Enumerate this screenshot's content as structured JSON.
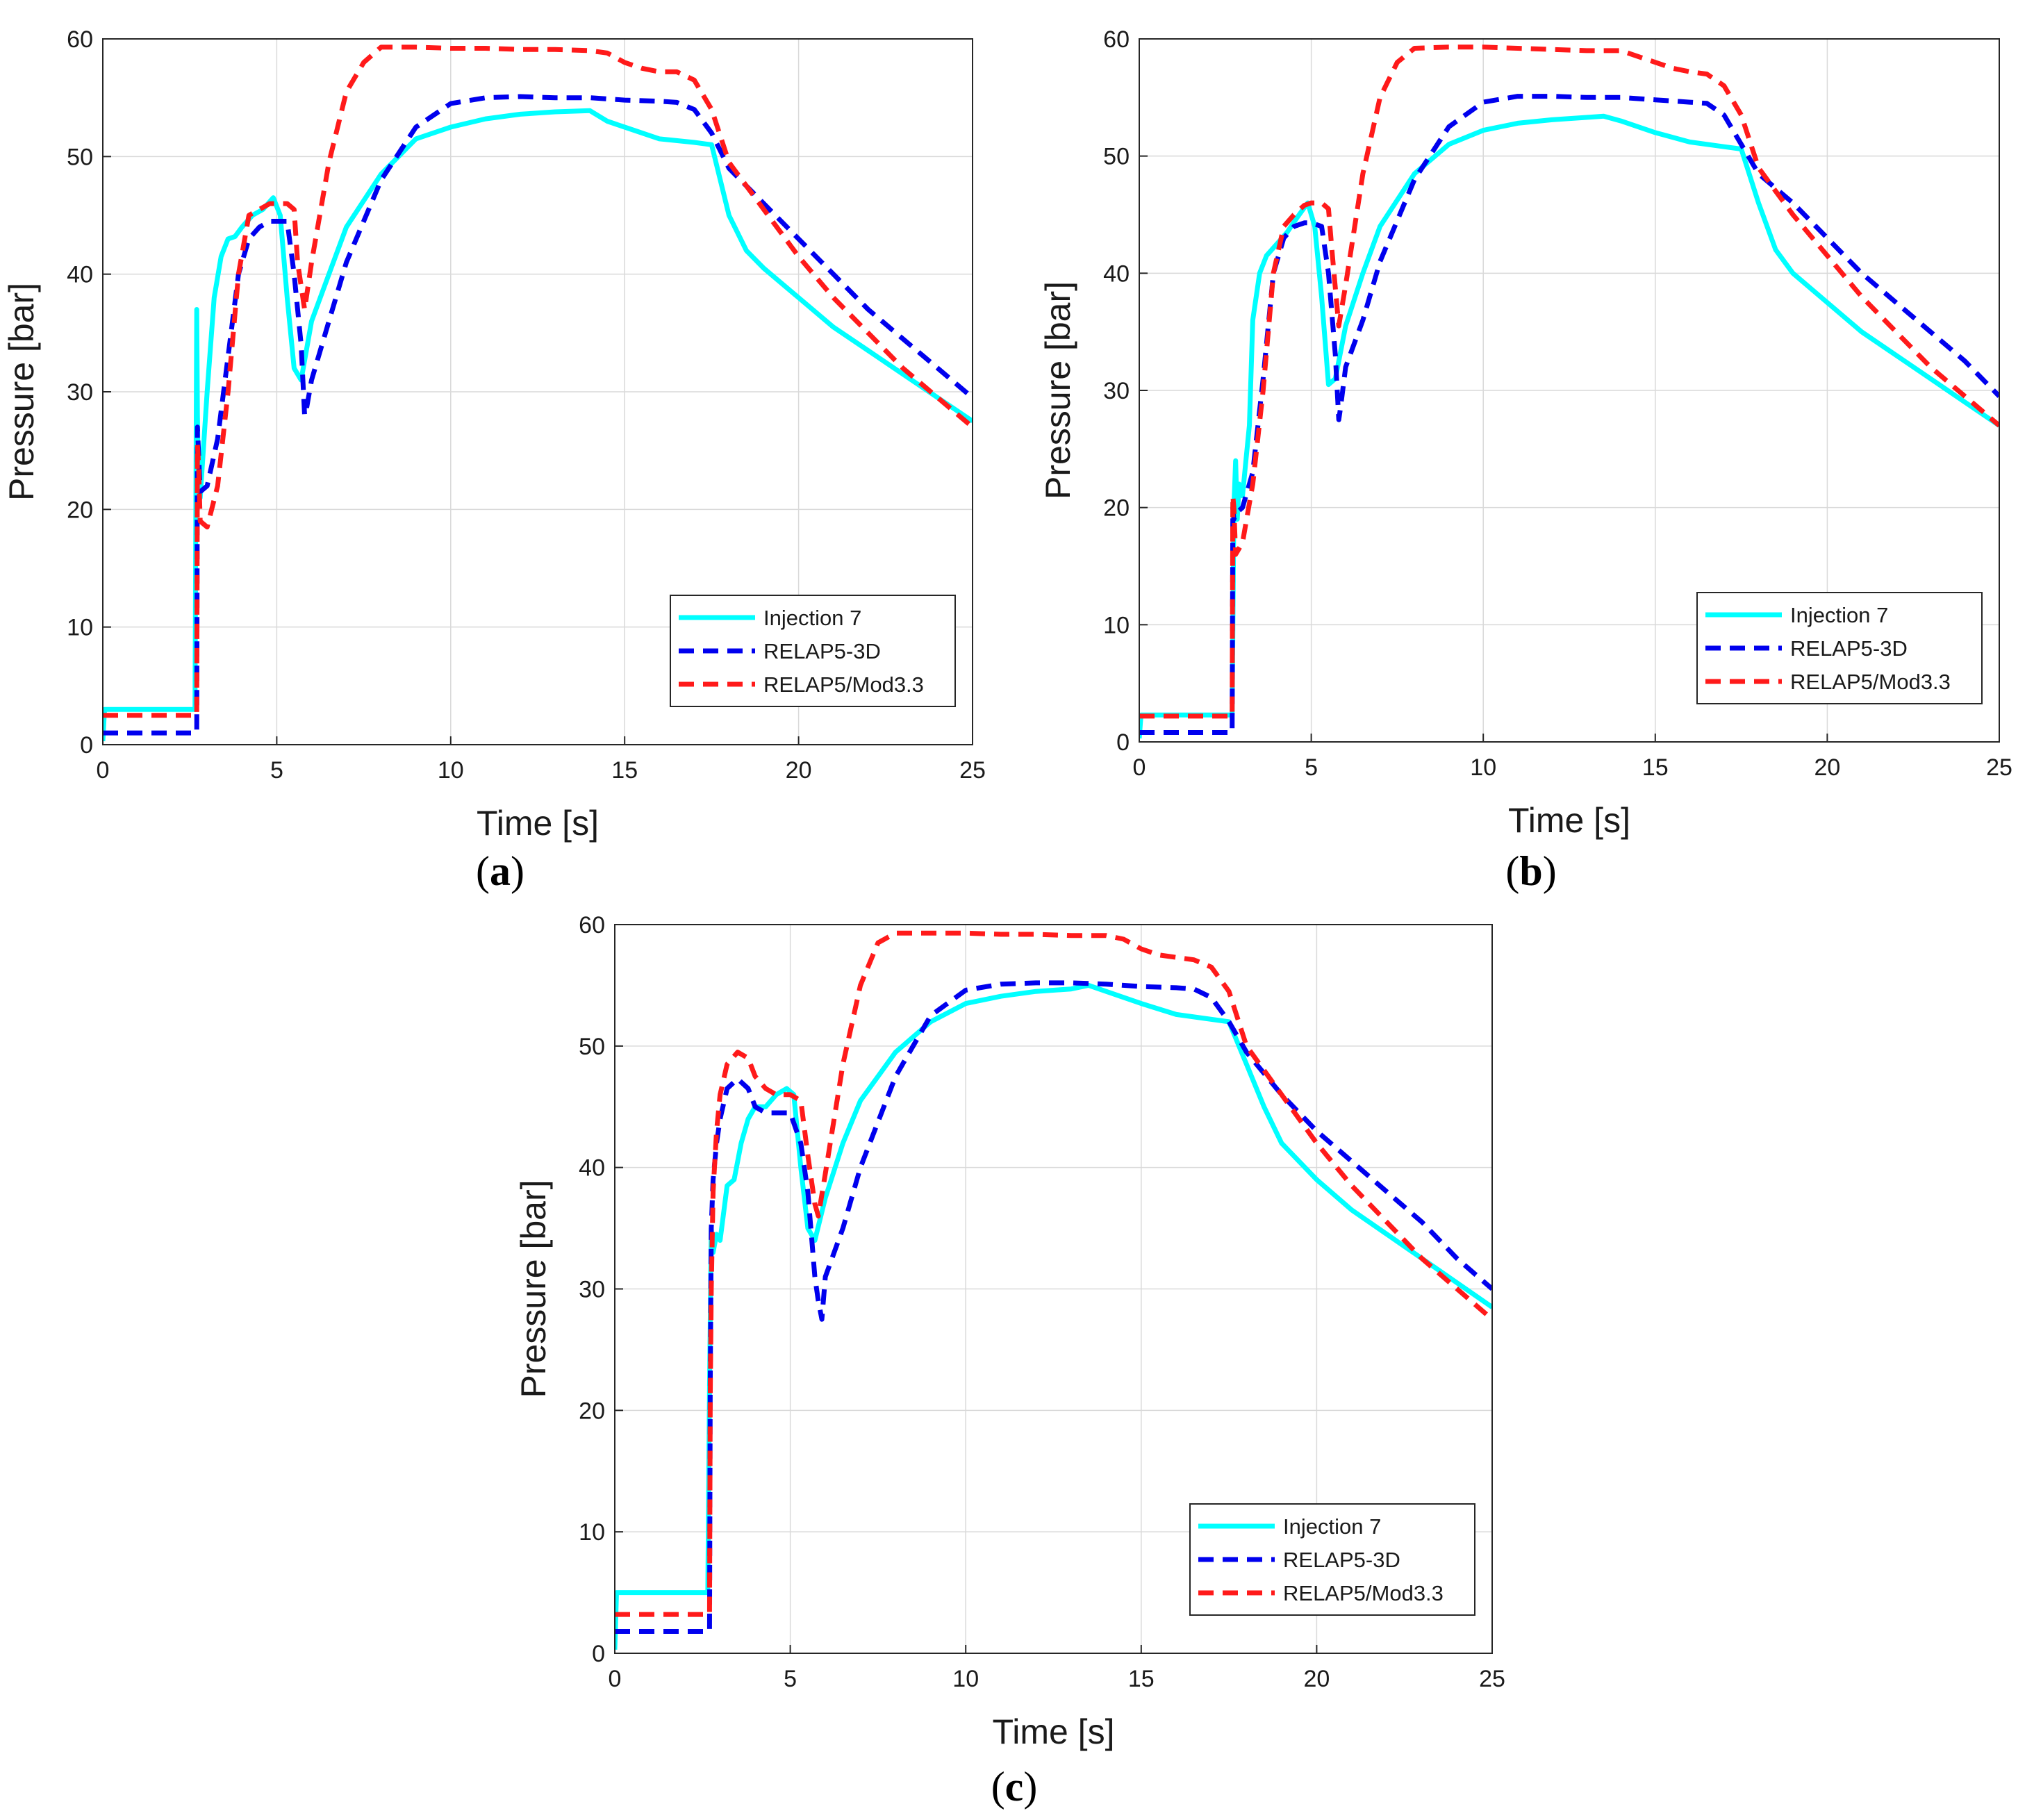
{
  "colors": {
    "injection": "#00FFFF",
    "relap3d": "#0000EE",
    "mod33": "#FF1A1A",
    "grid": "#d9d9d9",
    "axis": "#262626"
  },
  "chart_data": [
    {
      "panel": "a",
      "caption": "a",
      "type": "line",
      "xlabel": "Time [s]",
      "ylabel": "Pressure [bar]",
      "xlim": [
        0,
        25
      ],
      "ylim": [
        0,
        60
      ],
      "xticks": [
        0,
        5,
        10,
        15,
        20,
        25
      ],
      "yticks": [
        0,
        10,
        20,
        30,
        40,
        50,
        60
      ],
      "xtick_labels": [
        "0",
        "5",
        "10",
        "15",
        "20",
        "25"
      ],
      "ytick_labels": [
        "0",
        "10",
        "20",
        "30",
        "40",
        "50",
        "60"
      ],
      "grid": true,
      "legend_position": "bottom-right",
      "series": [
        {
          "name": "Injection 7",
          "style": "solid",
          "color_key": "injection",
          "x": [
            0,
            0.05,
            2.6,
            2.65,
            2.7,
            2.72,
            2.75,
            2.8,
            3.0,
            3.2,
            3.4,
            3.6,
            3.8,
            4.0,
            4.3,
            4.6,
            4.9,
            5.1,
            5.3,
            5.5,
            5.7,
            6.0,
            6.5,
            7.0,
            8.0,
            9.0,
            10.0,
            11.0,
            12.0,
            13.0,
            14.0,
            14.5,
            15.0,
            16.0,
            17.0,
            17.5,
            18.0,
            18.5,
            19.0,
            20.0,
            21.0,
            22.0,
            23.0,
            24.0,
            25.0
          ],
          "y": [
            0.3,
            3.0,
            3.0,
            3.0,
            37.0,
            28.0,
            22.0,
            21.0,
            30.0,
            38.0,
            41.5,
            43.0,
            43.2,
            44.0,
            45.0,
            45.5,
            46.5,
            45.0,
            38.0,
            32.0,
            31.0,
            36.0,
            40.0,
            44.0,
            48.5,
            51.5,
            52.5,
            53.2,
            53.6,
            53.8,
            53.9,
            53.0,
            52.5,
            51.5,
            51.2,
            51.0,
            45.0,
            42.0,
            40.5,
            38.0,
            35.5,
            33.5,
            31.5,
            29.5,
            27.5
          ]
        },
        {
          "name": "RELAP5-3D",
          "style": "dashed",
          "color_key": "relap3d",
          "x": [
            0,
            2.7,
            2.72,
            2.75,
            2.8,
            3.0,
            3.3,
            3.6,
            3.9,
            4.2,
            4.5,
            4.8,
            5.0,
            5.3,
            5.5,
            5.7,
            5.8,
            5.85,
            6.0,
            6.5,
            7.0,
            8.0,
            9.0,
            10.0,
            11.0,
            12.0,
            13.0,
            14.0,
            15.0,
            16.0,
            16.5,
            17.0,
            17.5,
            18.0,
            19.0,
            20.0,
            21.0,
            22.0,
            23.0,
            24.0,
            25.0
          ],
          "y": [
            1.0,
            1.0,
            27.0,
            25.0,
            21.5,
            22.0,
            26.0,
            33.0,
            40.0,
            43.0,
            44.0,
            44.5,
            44.5,
            44.5,
            40.0,
            34.0,
            28.0,
            28.5,
            31.0,
            36.0,
            41.0,
            48.0,
            52.5,
            54.5,
            55.0,
            55.1,
            55.0,
            55.0,
            54.8,
            54.7,
            54.6,
            54.0,
            52.0,
            49.0,
            46.0,
            43.0,
            40.0,
            37.0,
            34.5,
            32.0,
            29.5
          ]
        },
        {
          "name": "RELAP5/Mod3.3",
          "style": "dashed",
          "color_key": "mod33",
          "x": [
            0,
            2.7,
            2.72,
            2.75,
            2.8,
            3.0,
            3.3,
            3.6,
            3.9,
            4.2,
            4.5,
            4.8,
            5.0,
            5.3,
            5.5,
            5.6,
            5.8,
            6.0,
            6.5,
            7.0,
            7.5,
            8.0,
            9.0,
            10.0,
            11.0,
            12.0,
            13.0,
            14.0,
            14.5,
            15.0,
            15.5,
            16.0,
            16.5,
            17.0,
            17.5,
            18.0,
            19.0,
            20.0,
            21.0,
            22.0,
            23.0,
            24.0,
            25.0
          ],
          "y": [
            2.5,
            2.5,
            25.5,
            24.0,
            19.0,
            18.5,
            22.0,
            30.0,
            40.0,
            45.0,
            45.5,
            46.0,
            46.0,
            46.0,
            45.5,
            41.0,
            37.0,
            41.0,
            49.5,
            55.5,
            58.0,
            59.3,
            59.3,
            59.2,
            59.2,
            59.1,
            59.1,
            59.0,
            58.8,
            58.0,
            57.5,
            57.2,
            57.2,
            56.5,
            54.0,
            49.5,
            45.5,
            41.5,
            38.0,
            35.0,
            32.0,
            29.5,
            27.0
          ]
        }
      ]
    },
    {
      "panel": "b",
      "caption": "b",
      "type": "line",
      "xlabel": "Time [s]",
      "ylabel": "Pressure [bar]",
      "xlim": [
        0,
        25
      ],
      "ylim": [
        0,
        60
      ],
      "xticks": [
        0,
        5,
        10,
        15,
        20,
        25
      ],
      "yticks": [
        0,
        10,
        20,
        30,
        40,
        50,
        60
      ],
      "xtick_labels": [
        "0",
        "5",
        "10",
        "15",
        "20",
        "25"
      ],
      "ytick_labels": [
        "0",
        "10",
        "20",
        "30",
        "40",
        "50",
        "60"
      ],
      "grid": true,
      "legend_position": "bottom-right",
      "series": [
        {
          "name": "Injection 7",
          "style": "solid",
          "color_key": "injection",
          "x": [
            0,
            0.05,
            2.6,
            2.7,
            2.75,
            2.8,
            2.85,
            2.9,
            3.0,
            3.1,
            3.2,
            3.3,
            3.5,
            3.7,
            4.0,
            4.3,
            4.6,
            4.9,
            5.1,
            5.3,
            5.5,
            5.7,
            6.0,
            6.5,
            7.0,
            8.0,
            9.0,
            10.0,
            11.0,
            12.0,
            13.0,
            13.5,
            14.0,
            15.0,
            16.0,
            17.0,
            17.5,
            18.0,
            18.5,
            19.0,
            20.0,
            21.0,
            22.0,
            23.0,
            24.0,
            25.0
          ],
          "y": [
            0.3,
            2.3,
            2.3,
            2.3,
            20.0,
            24.0,
            19.0,
            22.0,
            21.0,
            24.0,
            27.0,
            36.0,
            40.0,
            41.5,
            42.5,
            43.5,
            44.8,
            46.0,
            44.0,
            38.0,
            30.5,
            31.0,
            35.5,
            40.0,
            44.0,
            48.5,
            51.0,
            52.2,
            52.8,
            53.1,
            53.3,
            53.4,
            53.0,
            52.0,
            51.2,
            50.8,
            50.6,
            46.0,
            42.0,
            40.0,
            37.5,
            35.0,
            33.0,
            31.0,
            29.0,
            27.0
          ]
        },
        {
          "name": "RELAP5-3D",
          "style": "dashed",
          "color_key": "relap3d",
          "x": [
            0,
            2.7,
            2.72,
            2.75,
            2.8,
            3.0,
            3.3,
            3.6,
            3.9,
            4.2,
            4.5,
            4.8,
            5.0,
            5.3,
            5.5,
            5.7,
            5.8,
            5.85,
            6.0,
            6.5,
            7.0,
            8.0,
            9.0,
            10.0,
            11.0,
            12.0,
            13.0,
            14.0,
            15.0,
            16.0,
            16.5,
            17.0,
            17.5,
            18.0,
            19.0,
            20.0,
            21.0,
            22.0,
            23.0,
            24.0,
            25.0
          ],
          "y": [
            0.8,
            0.8,
            20.0,
            19.0,
            19.5,
            20.0,
            23.0,
            31.0,
            40.0,
            43.0,
            44.0,
            44.3,
            44.3,
            44.0,
            40.0,
            33.0,
            27.5,
            28.5,
            32.0,
            36.0,
            41.0,
            48.0,
            52.5,
            54.6,
            55.1,
            55.1,
            55.0,
            55.0,
            54.8,
            54.6,
            54.5,
            53.5,
            51.0,
            48.5,
            46.0,
            43.0,
            40.0,
            37.5,
            35.0,
            32.5,
            29.5
          ]
        },
        {
          "name": "RELAP5/Mod3.3",
          "style": "dashed",
          "color_key": "mod33",
          "x": [
            0,
            2.7,
            2.72,
            2.75,
            2.8,
            3.0,
            3.3,
            3.6,
            3.9,
            4.2,
            4.5,
            4.8,
            5.0,
            5.3,
            5.5,
            5.6,
            5.8,
            6.0,
            6.5,
            7.0,
            7.5,
            8.0,
            9.0,
            10.0,
            11.0,
            12.0,
            13.0,
            14.0,
            14.5,
            15.0,
            15.5,
            16.0,
            16.5,
            17.0,
            17.5,
            18.0,
            19.0,
            20.0,
            21.0,
            22.0,
            23.0,
            24.0,
            25.0
          ],
          "y": [
            2.2,
            2.2,
            21.0,
            20.0,
            16.0,
            17.0,
            22.0,
            30.0,
            40.0,
            44.0,
            45.0,
            45.8,
            46.0,
            46.0,
            45.5,
            42.0,
            35.5,
            39.0,
            48.5,
            55.0,
            58.0,
            59.2,
            59.3,
            59.3,
            59.2,
            59.1,
            59.0,
            59.0,
            58.5,
            58.0,
            57.5,
            57.2,
            57.0,
            56.0,
            53.5,
            49.0,
            45.0,
            41.5,
            38.0,
            35.0,
            32.0,
            29.5,
            27.0
          ]
        }
      ]
    },
    {
      "panel": "c",
      "caption": "c",
      "type": "line",
      "xlabel": "Time [s]",
      "ylabel": "Pressure [bar]",
      "xlim": [
        0,
        25
      ],
      "ylim": [
        0,
        60
      ],
      "xticks": [
        0,
        5,
        10,
        15,
        20,
        25
      ],
      "yticks": [
        0,
        10,
        20,
        30,
        40,
        50,
        60
      ],
      "xtick_labels": [
        "0",
        "5",
        "10",
        "15",
        "20",
        "25"
      ],
      "ytick_labels": [
        "0",
        "10",
        "20",
        "30",
        "40",
        "50",
        "60"
      ],
      "grid": true,
      "legend_position": "bottom-right",
      "series": [
        {
          "name": "Injection 7",
          "style": "solid",
          "color_key": "injection",
          "x": [
            0,
            0.05,
            2.6,
            2.65,
            2.7,
            2.75,
            2.8,
            2.9,
            3.0,
            3.2,
            3.4,
            3.6,
            3.8,
            4.0,
            4.3,
            4.6,
            4.9,
            5.1,
            5.3,
            5.5,
            5.7,
            6.0,
            6.5,
            7.0,
            8.0,
            9.0,
            10.0,
            11.0,
            12.0,
            13.0,
            13.5,
            14.0,
            15.0,
            16.0,
            17.0,
            17.5,
            18.0,
            18.5,
            19.0,
            20.0,
            21.0,
            22.0,
            23.0,
            24.0,
            25.0
          ],
          "y": [
            0.3,
            5.0,
            5.0,
            5.0,
            22.0,
            35.0,
            33.0,
            34.5,
            34.0,
            38.5,
            39.0,
            42.0,
            44.0,
            45.0,
            45.0,
            46.0,
            46.5,
            46.0,
            40.0,
            35.0,
            34.0,
            37.5,
            42.0,
            45.5,
            49.5,
            52.0,
            53.5,
            54.1,
            54.5,
            54.7,
            55.0,
            54.5,
            53.5,
            52.6,
            52.2,
            52.0,
            48.5,
            45.0,
            42.0,
            39.0,
            36.5,
            34.5,
            32.5,
            30.5,
            28.5
          ]
        },
        {
          "name": "RELAP5-3D",
          "style": "dashed",
          "color_key": "relap3d",
          "x": [
            0,
            2.7,
            2.72,
            2.75,
            2.8,
            2.9,
            3.0,
            3.2,
            3.5,
            3.8,
            4.0,
            4.3,
            4.6,
            5.0,
            5.3,
            5.5,
            5.7,
            5.8,
            5.9,
            6.0,
            6.5,
            7.0,
            8.0,
            9.0,
            10.0,
            11.0,
            12.0,
            13.0,
            14.0,
            15.0,
            16.0,
            16.5,
            17.0,
            17.5,
            18.0,
            19.0,
            20.0,
            21.0,
            22.0,
            23.0,
            24.0,
            25.0
          ],
          "y": [
            1.8,
            1.8,
            22.0,
            35.0,
            39.0,
            42.0,
            44.0,
            46.5,
            47.3,
            46.5,
            45.0,
            44.5,
            44.5,
            44.5,
            42.0,
            38.0,
            31.0,
            29.0,
            27.5,
            31.0,
            35.0,
            40.0,
            47.5,
            52.5,
            54.6,
            55.1,
            55.2,
            55.2,
            55.1,
            54.9,
            54.8,
            54.7,
            54.0,
            52.0,
            49.5,
            46.0,
            43.0,
            40.5,
            38.0,
            35.5,
            32.5,
            30.0
          ]
        },
        {
          "name": "RELAP5/Mod3.3",
          "style": "dashed",
          "color_key": "mod33",
          "x": [
            0,
            2.7,
            2.72,
            2.75,
            2.8,
            2.9,
            3.0,
            3.2,
            3.5,
            3.8,
            4.0,
            4.3,
            4.6,
            5.0,
            5.3,
            5.5,
            5.7,
            5.8,
            6.0,
            6.5,
            7.0,
            7.5,
            8.0,
            9.0,
            10.0,
            11.0,
            12.0,
            13.0,
            14.0,
            14.5,
            15.0,
            15.5,
            16.0,
            16.5,
            17.0,
            17.5,
            18.0,
            19.0,
            20.0,
            21.0,
            22.0,
            23.0,
            24.0,
            25.0
          ],
          "y": [
            3.2,
            3.2,
            21.0,
            30.0,
            38.0,
            43.0,
            46.0,
            48.5,
            49.5,
            49.0,
            47.5,
            46.5,
            46.0,
            46.0,
            45.5,
            41.0,
            37.0,
            36.0,
            39.5,
            48.5,
            55.0,
            58.5,
            59.3,
            59.3,
            59.3,
            59.2,
            59.2,
            59.1,
            59.1,
            58.8,
            58.0,
            57.5,
            57.3,
            57.1,
            56.5,
            54.5,
            50.0,
            46.0,
            42.0,
            38.5,
            35.5,
            32.5,
            30.0,
            27.5
          ]
        }
      ]
    }
  ]
}
